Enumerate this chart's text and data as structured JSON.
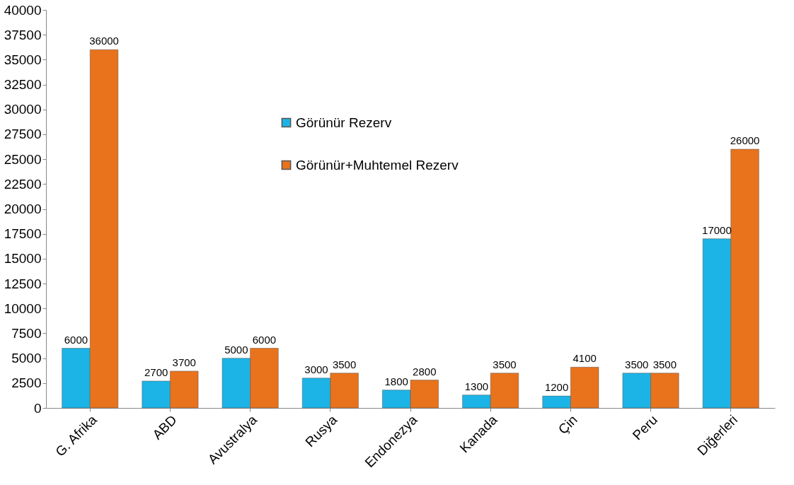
{
  "chart_data": {
    "type": "bar",
    "categories": [
      "G. Afrika",
      "ABD",
      "Avustralya",
      "Rusya",
      "Endonezya",
      "Kanada",
      "Çin",
      "Peru",
      "Diğerleri"
    ],
    "series": [
      {
        "name": "Görünür Rezerv",
        "color": "#1cb4e6",
        "values": [
          6000,
          2700,
          5000,
          3000,
          1800,
          1300,
          1200,
          3500,
          17000
        ]
      },
      {
        "name": "Görünür+Muhtemel Rezerv",
        "color": "#e8731c",
        "values": [
          36000,
          3700,
          6000,
          3500,
          2800,
          3500,
          4100,
          3500,
          26000
        ]
      }
    ],
    "ylim": [
      0,
      40000
    ],
    "yticks": [
      0,
      2500,
      5000,
      7500,
      10000,
      12500,
      15000,
      17500,
      20000,
      22500,
      25000,
      27500,
      30000,
      32500,
      35000,
      37500,
      40000
    ],
    "grid": false,
    "legend": "top",
    "data_labels": true
  }
}
